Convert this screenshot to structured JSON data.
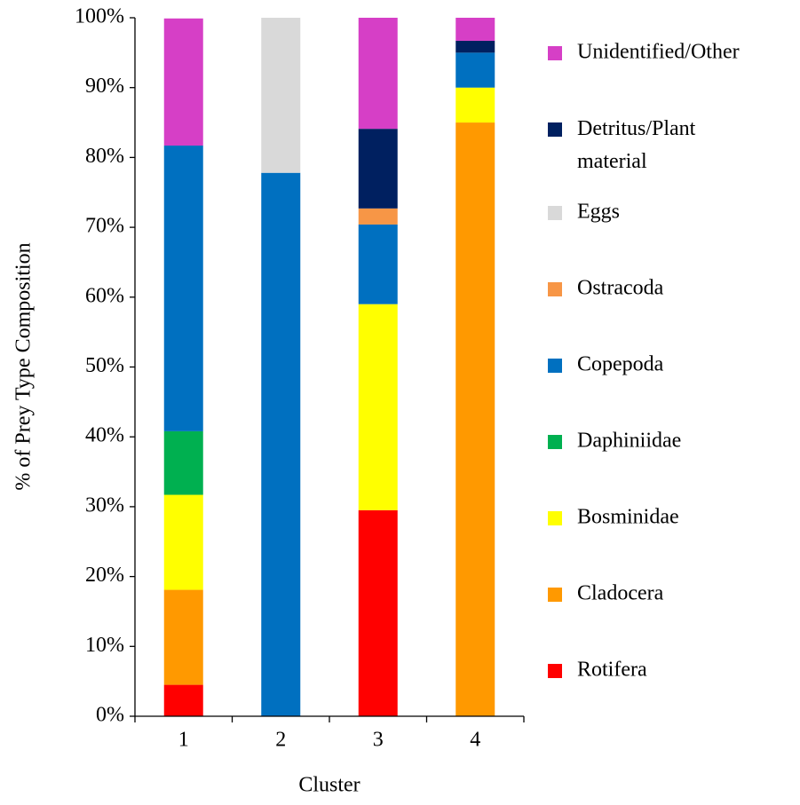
{
  "chart_data": {
    "type": "stacked_bar",
    "x_label": "Cluster",
    "y_label": "% of Prey Type Composition",
    "categories": [
      "1",
      "2",
      "3",
      "4"
    ],
    "ylim": [
      0,
      100
    ],
    "yticks": [
      {
        "value": 0,
        "label": "0%"
      },
      {
        "value": 10,
        "label": "10%"
      },
      {
        "value": 20,
        "label": "20%"
      },
      {
        "value": 30,
        "label": "30%"
      },
      {
        "value": 40,
        "label": "40%"
      },
      {
        "value": 50,
        "label": "50%"
      },
      {
        "value": 60,
        "label": "60%"
      },
      {
        "value": 70,
        "label": "70%"
      },
      {
        "value": 80,
        "label": "80%"
      },
      {
        "value": 90,
        "label": "90%"
      },
      {
        "value": 100,
        "label": "100%"
      }
    ],
    "legend_position": "right",
    "series": [
      {
        "name": "Rotifera",
        "color": "#ff0000",
        "values": [
          4.5,
          0,
          29.5,
          0
        ]
      },
      {
        "name": "Cladocera",
        "color": "#ff9900",
        "values": [
          13.6,
          0,
          0,
          85
        ]
      },
      {
        "name": "Bosminidae",
        "color": "#ffff00",
        "values": [
          13.6,
          0,
          29.5,
          5
        ]
      },
      {
        "name": "Daphiniidae",
        "color": "#00b050",
        "values": [
          9.1,
          0,
          0,
          0
        ]
      },
      {
        "name": "Copepoda",
        "color": "#0070c0",
        "values": [
          40.9,
          77.8,
          11.4,
          5
        ]
      },
      {
        "name": "Ostracoda",
        "color": "#f79646",
        "values": [
          0,
          0,
          2.3,
          0
        ]
      },
      {
        "name": "Eggs",
        "color": "#d9d9d9",
        "values": [
          0,
          22.2,
          0,
          0
        ]
      },
      {
        "name": "Detritus/Plant material",
        "color": "#002060",
        "values": [
          0,
          0,
          11.4,
          1.7
        ]
      },
      {
        "name": "Unidentified/Other",
        "color": "#d63fc6",
        "values": [
          18.2,
          0,
          15.9,
          3.3
        ]
      }
    ]
  }
}
